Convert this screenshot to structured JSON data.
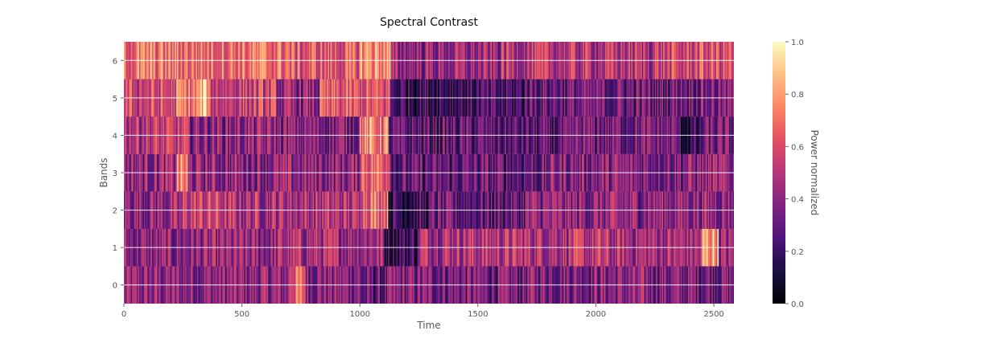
{
  "chart_data": {
    "type": "heatmap",
    "title": "Spectral Contrast",
    "xlabel": "Time",
    "ylabel": "Bands",
    "xlim": [
      0,
      2585
    ],
    "ylim": [
      -0.5,
      6.5
    ],
    "x_ticks": [
      0,
      500,
      1000,
      1500,
      2000,
      2500
    ],
    "y_ticks": [
      0,
      1,
      2,
      3,
      4,
      5,
      6
    ],
    "colorbar": {
      "label": "Power normalized",
      "range": [
        0.0,
        1.0
      ],
      "ticks": [
        "0.0",
        "0.2",
        "0.4",
        "0.6",
        "0.8",
        "1.0"
      ],
      "colormap": "magma"
    },
    "grid": true,
    "bands": [
      {
        "band": 0,
        "segments": [
          [
            0,
            700,
            0.4
          ],
          [
            700,
            770,
            0.65
          ],
          [
            770,
            1000,
            0.4
          ],
          [
            1000,
            1120,
            0.28
          ],
          [
            1120,
            1500,
            0.36
          ],
          [
            1500,
            1700,
            0.34
          ],
          [
            1700,
            2300,
            0.38
          ],
          [
            2300,
            2585,
            0.36
          ]
        ]
      },
      {
        "band": 1,
        "segments": [
          [
            0,
            250,
            0.38
          ],
          [
            250,
            650,
            0.4
          ],
          [
            650,
            1100,
            0.46
          ],
          [
            1100,
            1250,
            0.22
          ],
          [
            1250,
            1600,
            0.5
          ],
          [
            1600,
            2050,
            0.5
          ],
          [
            2050,
            2450,
            0.46
          ],
          [
            2450,
            2520,
            0.8
          ],
          [
            2520,
            2585,
            0.42
          ]
        ]
      },
      {
        "band": 2,
        "segments": [
          [
            0,
            250,
            0.42
          ],
          [
            250,
            420,
            0.55
          ],
          [
            420,
            1000,
            0.48
          ],
          [
            1000,
            1120,
            0.7
          ],
          [
            1120,
            1300,
            0.2
          ],
          [
            1300,
            1700,
            0.3
          ],
          [
            1700,
            2200,
            0.4
          ],
          [
            2200,
            2585,
            0.42
          ]
        ]
      },
      {
        "band": 3,
        "segments": [
          [
            0,
            220,
            0.42
          ],
          [
            220,
            270,
            0.72
          ],
          [
            270,
            1000,
            0.4
          ],
          [
            1000,
            1130,
            0.68
          ],
          [
            1130,
            1400,
            0.28
          ],
          [
            1400,
            1800,
            0.3
          ],
          [
            1800,
            2400,
            0.38
          ],
          [
            2400,
            2585,
            0.4
          ]
        ]
      },
      {
        "band": 4,
        "segments": [
          [
            0,
            270,
            0.52
          ],
          [
            270,
            650,
            0.4
          ],
          [
            650,
            1000,
            0.38
          ],
          [
            1000,
            1120,
            0.72
          ],
          [
            1120,
            1600,
            0.28
          ],
          [
            1600,
            1900,
            0.26
          ],
          [
            1900,
            2350,
            0.34
          ],
          [
            2350,
            2450,
            0.16
          ],
          [
            2450,
            2585,
            0.32
          ]
        ]
      },
      {
        "band": 5,
        "segments": [
          [
            0,
            220,
            0.56
          ],
          [
            220,
            320,
            0.7
          ],
          [
            320,
            360,
            0.86
          ],
          [
            360,
            650,
            0.55
          ],
          [
            650,
            830,
            0.4
          ],
          [
            830,
            1130,
            0.6
          ],
          [
            1130,
            1700,
            0.22
          ],
          [
            1700,
            2300,
            0.32
          ],
          [
            2300,
            2585,
            0.36
          ]
        ]
      },
      {
        "band": 6,
        "segments": [
          [
            0,
            700,
            0.7
          ],
          [
            700,
            1000,
            0.62
          ],
          [
            1000,
            1130,
            0.78
          ],
          [
            1130,
            1600,
            0.42
          ],
          [
            1600,
            2250,
            0.5
          ],
          [
            2250,
            2400,
            0.55
          ],
          [
            2400,
            2585,
            0.6
          ]
        ]
      }
    ]
  }
}
